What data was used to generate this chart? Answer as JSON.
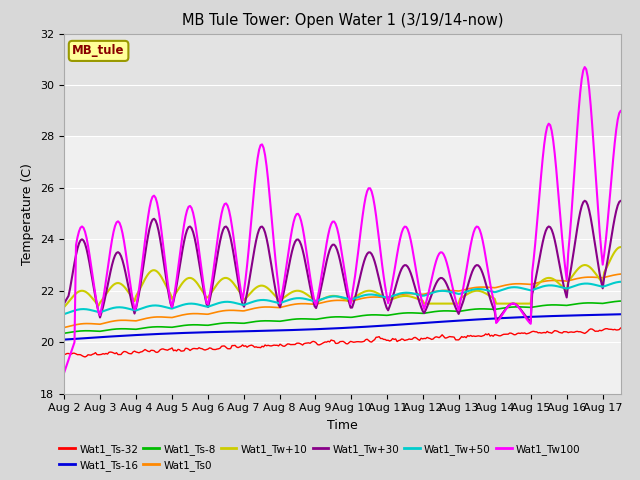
{
  "title": "MB Tule Tower: Open Water 1 (3/19/14-now)",
  "xlabel": "Time",
  "ylabel": "Temperature (C)",
  "ylim": [
    18,
    32
  ],
  "yticks": [
    18,
    20,
    22,
    24,
    26,
    28,
    30,
    32
  ],
  "x_tick_labels": [
    "Aug 2",
    "Aug 3",
    "Aug 4",
    "Aug 5",
    "Aug 6",
    "Aug 7",
    "Aug 8",
    "Aug 9",
    "Aug 10",
    "Aug 11",
    "Aug 12",
    "Aug 13",
    "Aug 14",
    "Aug 15",
    "Aug 16",
    "Aug 17"
  ],
  "series": [
    {
      "name": "Wat1_Ts-32",
      "color": "#ff0000",
      "lw": 1.0
    },
    {
      "name": "Wat1_Ts-16",
      "color": "#0000dd",
      "lw": 1.5
    },
    {
      "name": "Wat1_Ts-8",
      "color": "#00bb00",
      "lw": 1.2
    },
    {
      "name": "Wat1_Ts0",
      "color": "#ff8800",
      "lw": 1.2
    },
    {
      "name": "Wat1_Tw+10",
      "color": "#cccc00",
      "lw": 1.5
    },
    {
      "name": "Wat1_Tw+30",
      "color": "#880088",
      "lw": 1.5
    },
    {
      "name": "Wat1_Tw+50",
      "color": "#00cccc",
      "lw": 1.5
    },
    {
      "name": "Wat1_Tw100",
      "color": "#ff00ff",
      "lw": 1.5
    }
  ],
  "legend_box_color": "#ffff99",
  "legend_box_text": "MB_tule",
  "legend_box_text_color": "#880000",
  "shaded_band": [
    28,
    32
  ],
  "fig_bg": "#d8d8d8",
  "plot_bg": "#f0f0f0"
}
